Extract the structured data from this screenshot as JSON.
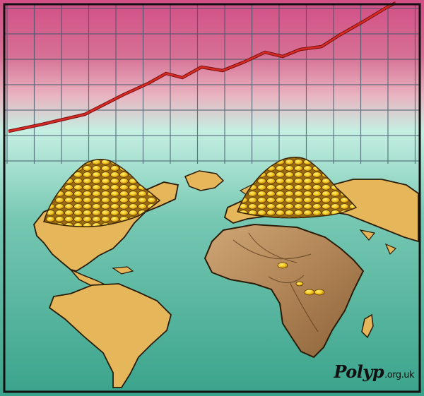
{
  "signature": {
    "name": "Polyp",
    "domain": ".org.uk"
  },
  "colors": {
    "sky_top": "#d24f86",
    "sky_mid": "#e7a9b8",
    "horizon": "#bfeee0",
    "sea": "#44ab93",
    "grid_line": "#3d5466",
    "trend_line": "#c0231f",
    "land": "#e5b75a",
    "africa": "#b08456",
    "coins": "#f2c31e",
    "frame": "#111111"
  },
  "trend": {
    "direction": "rising"
  },
  "icons": [
    "rising-trend-line",
    "coin-pile",
    "depleted-africa"
  ]
}
